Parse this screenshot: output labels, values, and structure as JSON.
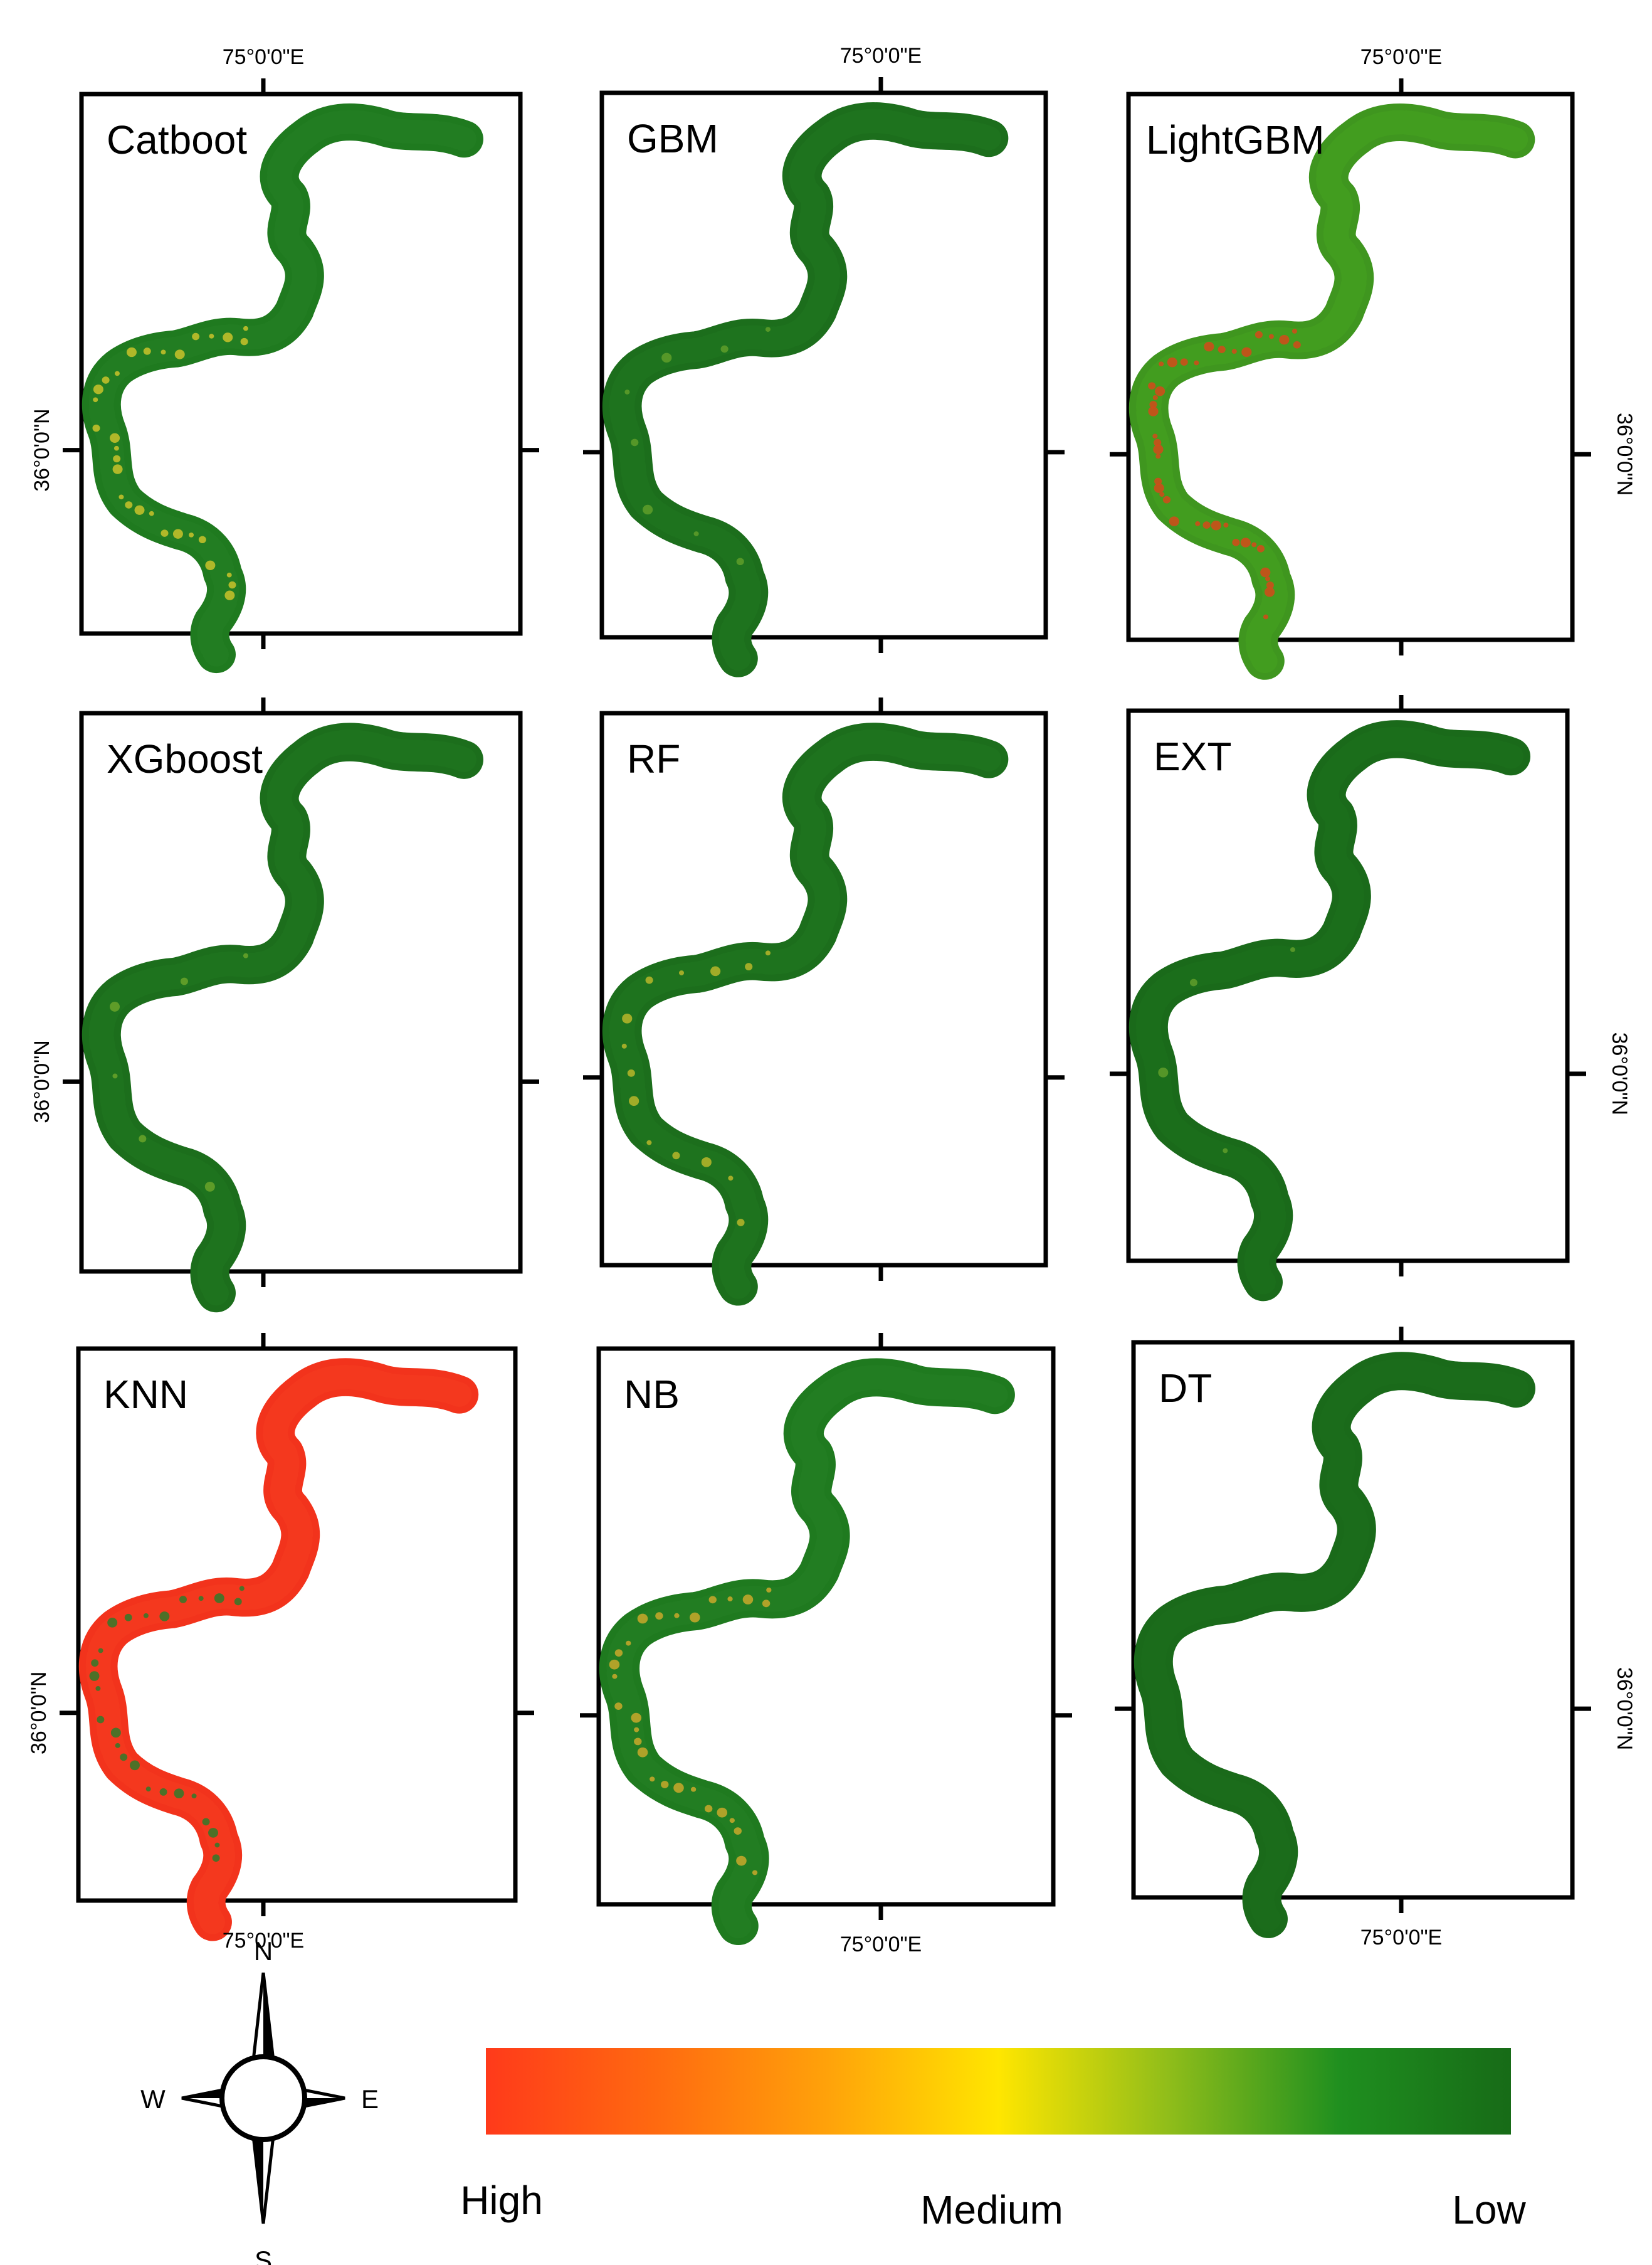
{
  "panels": [
    {
      "title": "Catboot",
      "band": [
        "#1f7a1f",
        "#247f24"
      ],
      "speckle": "#c9c22a",
      "speckle_count": 30,
      "top_left_label": true,
      "top_right_label": false,
      "left_lat_label": true,
      "right_lat_label": false,
      "bottom_label": false
    },
    {
      "title": "GBM",
      "band": [
        "#1c6e1c",
        "#1f751f"
      ],
      "speckle": "#5f9e2a",
      "speckle_count": 8,
      "top_left_label": false,
      "top_right_label": true,
      "left_lat_label": false,
      "right_lat_label": false,
      "bottom_label": false
    },
    {
      "title": "LightGBM",
      "band": [
        "#3f961f",
        "#44a01f"
      ],
      "speckle": "#d34a1a",
      "speckle_count": 40,
      "top_left_label": false,
      "top_right_label": true,
      "left_lat_label": false,
      "right_lat_label": true,
      "bottom_label": false
    },
    {
      "title": "XGboost",
      "band": [
        "#1c6e1c",
        "#207520"
      ],
      "speckle": "#6aa32a",
      "speckle_count": 6,
      "top_left_label": false,
      "top_right_label": false,
      "left_lat_label": true,
      "right_lat_label": false,
      "bottom_label": false
    },
    {
      "title": "RF",
      "band": [
        "#1c6e1c",
        "#207520"
      ],
      "speckle": "#b9b62a",
      "speckle_count": 14,
      "top_left_label": false,
      "top_right_label": false,
      "left_lat_label": false,
      "right_lat_label": false,
      "bottom_label": false
    },
    {
      "title": "EXT",
      "band": [
        "#1a6a1a",
        "#1d701d"
      ],
      "speckle": "#5f9e2a",
      "speckle_count": 4,
      "top_left_label": false,
      "top_right_label": false,
      "left_lat_label": false,
      "right_lat_label": true,
      "bottom_label": false
    },
    {
      "title": "KNN",
      "band": [
        "#f2331c",
        "#f53a1f"
      ],
      "speckle": "#2f7a2a",
      "speckle_count": 26,
      "top_left_label": false,
      "top_right_label": false,
      "left_lat_label": true,
      "right_lat_label": false,
      "bottom_label": true
    },
    {
      "title": "NB",
      "band": [
        "#1f7a1f",
        "#247f24"
      ],
      "speckle": "#c9a82a",
      "speckle_count": 28,
      "top_left_label": false,
      "top_right_label": false,
      "left_lat_label": false,
      "right_lat_label": false,
      "bottom_label": true
    },
    {
      "title": "DT",
      "band": [
        "#1a6a1a",
        "#1c6e1c"
      ],
      "speckle": "#1a6a1a",
      "speckle_count": 0,
      "top_left_label": false,
      "top_right_label": false,
      "left_lat_label": false,
      "right_lat_label": true,
      "bottom_label": true
    }
  ],
  "coords": {
    "longitude": "75°0'0\"E",
    "latitude": "36°0'0\"N"
  },
  "compass": {
    "n": "N",
    "s": "S",
    "e": "E",
    "w": "W"
  },
  "legend": {
    "high": "High",
    "medium": "Medium",
    "low": "Low",
    "colors": [
      "#ff3a1a",
      "#ff6a10",
      "#ffa20a",
      "#ffe600",
      "#8fbd1a",
      "#1f8f1f",
      "#176b17"
    ]
  }
}
